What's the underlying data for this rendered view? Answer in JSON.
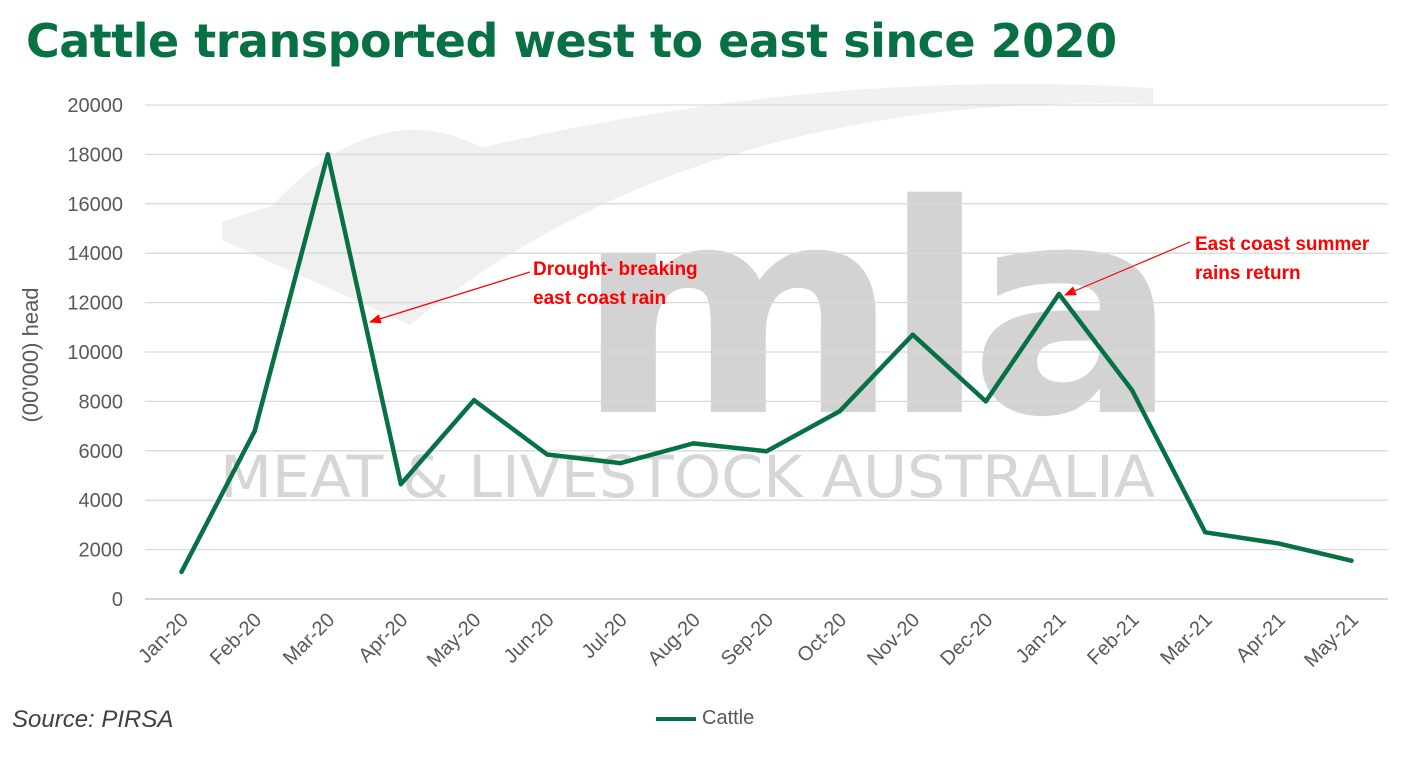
{
  "chart_data": {
    "type": "line",
    "title": "Cattle transported west to east since 2020",
    "xlabel": "",
    "ylabel": "(00'000) head",
    "categories": [
      "Jan-20",
      "Feb-20",
      "Mar-20",
      "Apr-20",
      "May-20",
      "Jun-20",
      "Jul-20",
      "Aug-20",
      "Sep-20",
      "Oct-20",
      "Nov-20",
      "Dec-20",
      "Jan-21",
      "Feb-21",
      "Mar-21",
      "Apr-21",
      "May-21"
    ],
    "series": [
      {
        "name": "Cattle",
        "color": "#077143",
        "values": [
          1100,
          6800,
          18000,
          4650,
          8050,
          5850,
          5500,
          6300,
          5980,
          7600,
          10700,
          8000,
          12350,
          8450,
          2700,
          2250,
          1550
        ]
      }
    ],
    "ylim": [
      0,
      20000
    ],
    "yticks": [
      0,
      2000,
      4000,
      6000,
      8000,
      10000,
      12000,
      14000,
      16000,
      18000,
      20000
    ],
    "grid": true,
    "legend": "bottom",
    "annotations": [
      {
        "lines": [
          "Drought- breaking",
          "east coast rain"
        ],
        "points_to": "Mar-20"
      },
      {
        "lines": [
          "East coast summer",
          "rains return"
        ],
        "points_to": "Jan-21"
      }
    ]
  },
  "watermark": {
    "logo_text": "mla",
    "text": "MEAT & LIVESTOCK AUSTRALIA"
  },
  "source": "Source: PIRSA",
  "legend_label": "Cattle",
  "colors": {
    "title": "#077143",
    "series": "#077143",
    "grid": "#d9d9d9",
    "annotation": "#ff0000",
    "watermark": "#c8c8c8"
  }
}
